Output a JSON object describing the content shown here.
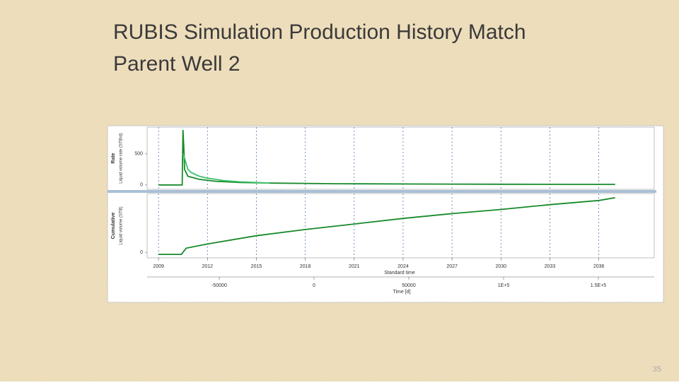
{
  "header": {
    "title": [
      "RUBIS Simulation Production History Match",
      "Parent Well 2"
    ],
    "page_number": "35"
  },
  "chart_data": [
    {
      "type": "line",
      "y_label": "Rate",
      "y_sublabel": "Liquid volume rate (STB/d)",
      "xlim": [
        2008.3,
        2039.4
      ],
      "ylim": [
        -70,
        930
      ],
      "yticks": [
        0,
        500
      ],
      "grid": true,
      "series": [
        {
          "color": "#178a2a",
          "x": [
            2009,
            2010.45,
            2010.5,
            2010.55,
            2010.6,
            2010.8,
            2011.5,
            2012.5,
            2014,
            2016,
            2020,
            2025,
            2030,
            2035,
            2037
          ],
          "values": [
            0,
            0,
            886,
            600,
            250,
            140,
            90,
            60,
            40,
            30,
            20,
            15,
            12,
            10,
            9
          ]
        },
        {
          "color": "#3fbf6a",
          "x": [
            2010.5,
            2010.6,
            2010.8,
            2011,
            2011.5,
            2012,
            2012.5,
            2013,
            2014,
            2015,
            2015.8
          ],
          "values": [
            500,
            430,
            250,
            200,
            140,
            110,
            90,
            70,
            50,
            40,
            30
          ]
        }
      ]
    },
    {
      "type": "line",
      "y_label": "Cumulative",
      "y_sublabel": "Liquid volume (STB)",
      "x_label": "Standard time",
      "x2_label": "Time [d]",
      "xlim": [
        2008.3,
        2039.4
      ],
      "xticks": [
        2009,
        2012,
        2015,
        2018,
        2021,
        2024,
        2027,
        2030,
        2033,
        2036
      ],
      "x2lim": [
        -88060,
        179478
      ],
      "x2ticks": [
        -50000,
        0,
        50000,
        {
          "value": 100000,
          "label": "1E+5"
        },
        {
          "value": 150000,
          "label": "1.5E+5"
        }
      ],
      "ylim": [
        -8,
        85
      ],
      "yticks": [
        0
      ],
      "grid": true,
      "series": [
        {
          "color": "#178a2a",
          "x": [
            2009,
            2010.4,
            2010.7,
            2012,
            2015,
            2018,
            2021,
            2024,
            2027,
            2030,
            2033,
            2036,
            2037
          ],
          "values": [
            -3,
            -3,
            6,
            12,
            24,
            33,
            41,
            49,
            56,
            62,
            69,
            75,
            79
          ]
        }
      ]
    }
  ]
}
